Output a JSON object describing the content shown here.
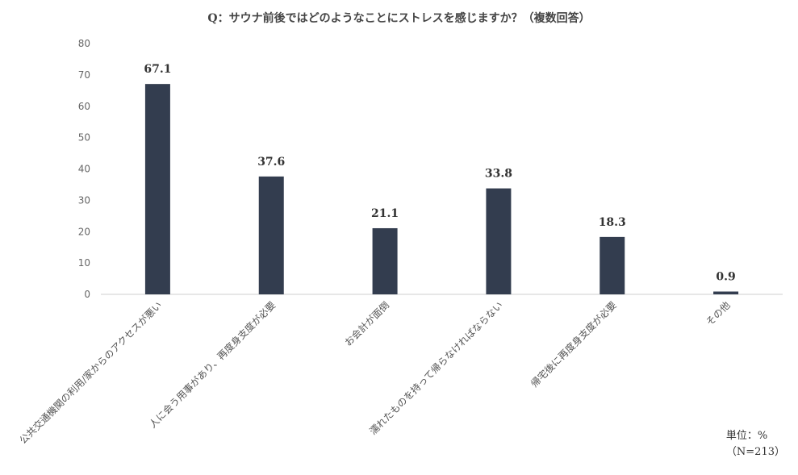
{
  "chart_data": {
    "type": "bar",
    "title": "Q：サウナ前後ではどのようなことにストレスを感じますか？（複数回答）",
    "categories": [
      "公共交通機関の利用/家からのアクセスが悪い",
      "人に会う用事があり、再度身支度が必要",
      "お会計が面倒",
      "濡れたものを持って帰らなければならない",
      "帰宅後に再度身支度が必要",
      "その他"
    ],
    "values": [
      67.1,
      37.6,
      21.1,
      33.8,
      18.3,
      0.9
    ],
    "value_labels": [
      "67.1",
      "37.6",
      "21.1",
      "33.8",
      "18.3",
      "0.9"
    ],
    "yticks": [
      "0",
      "10",
      "20",
      "30",
      "40",
      "50",
      "60",
      "70",
      "80"
    ],
    "ylim": [
      0,
      80
    ],
    "xlabel": "",
    "ylabel": "",
    "bar_color": "#333d4f",
    "grid": false,
    "legend": "none"
  },
  "footer": {
    "unit": "単位：%",
    "n": "（N=213）"
  }
}
